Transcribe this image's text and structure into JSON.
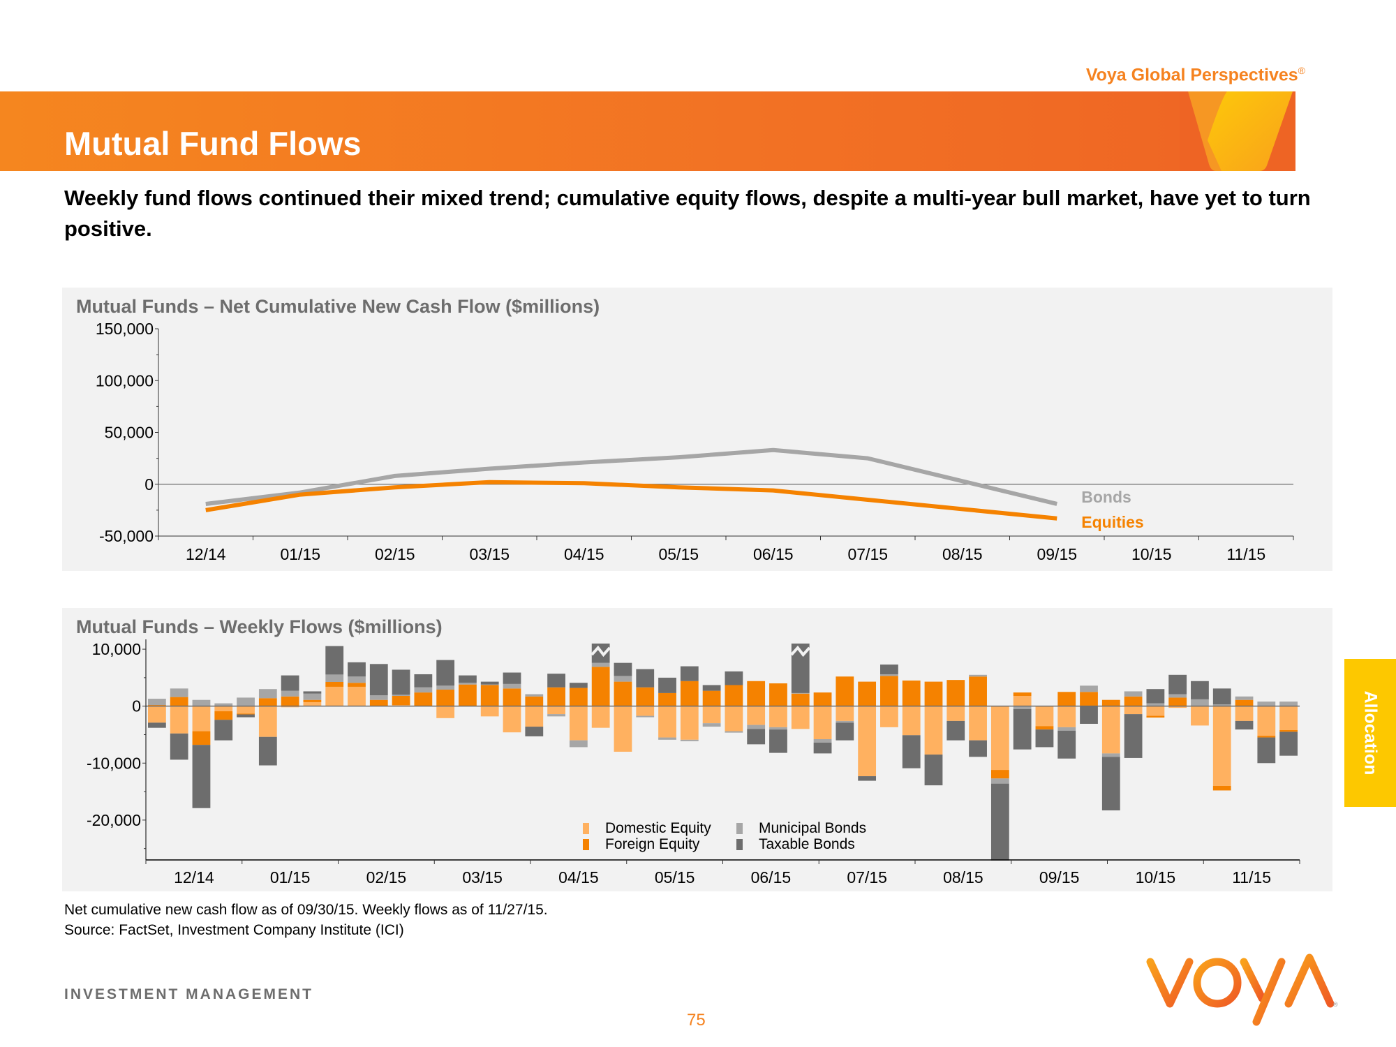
{
  "header": {
    "brand_tag": "Voya Global Perspectives",
    "brand_tag_mark": "®",
    "title": "Mutual Fund Flows",
    "headline": "Weekly fund flows continued their mixed trend; cumulative equity flows, despite a multi-year bull market, have yet to turn positive."
  },
  "side_tab": {
    "label": "Allocation"
  },
  "colors": {
    "brand_orange": "#f5821f",
    "domestic_equity": "#ffb160",
    "foreign_equity": "#f58200",
    "municipal_bonds": "#a6a6a6",
    "taxable_bonds": "#6d6d6d",
    "bonds_line": "#a6a6a6",
    "equities_line": "#f58200",
    "tab_yellow": "#fdc800"
  },
  "chart_data": [
    {
      "type": "line",
      "title": "Mutual Funds – Net Cumulative New Cash Flow ($millions)",
      "xlabel": "",
      "ylabel": "",
      "ylim": [
        -50000,
        150000
      ],
      "yticks": [
        150000,
        100000,
        50000,
        0,
        -50000
      ],
      "ytick_labels": [
        "150,000",
        "100,000",
        "50,000",
        "0",
        "-50,000"
      ],
      "categories": [
        "12/14",
        "01/15",
        "02/15",
        "03/15",
        "04/15",
        "05/15",
        "06/15",
        "07/15",
        "08/15",
        "09/15",
        "10/15",
        "11/15"
      ],
      "series": [
        {
          "name": "Bonds",
          "values": [
            -19000,
            -8000,
            8000,
            15000,
            21000,
            26000,
            33000,
            25000,
            3000,
            -19000,
            null,
            null
          ]
        },
        {
          "name": "Equities",
          "values": [
            -25000,
            -10000,
            -3000,
            2000,
            1000,
            -3000,
            -6000,
            -15000,
            -24000,
            -33000,
            null,
            null
          ]
        }
      ],
      "legend": "right-of-line-end",
      "grid": false
    },
    {
      "type": "bar",
      "stacked": true,
      "title": "Mutual Funds – Weekly Flows ($millions)",
      "xlabel": "",
      "ylabel": "",
      "ylim": [
        -27000,
        10500
      ],
      "yticks": [
        10000,
        0,
        -10000,
        -20000
      ],
      "ytick_labels": [
        "10,000",
        "0",
        "-10,000",
        "-20,000"
      ],
      "xtick_labels": [
        "12/14",
        "01/15",
        "02/15",
        "03/15",
        "04/15",
        "05/15",
        "06/15",
        "07/15",
        "08/15",
        "09/15",
        "10/15",
        "11/15"
      ],
      "legend": "bottom-center",
      "legend_entries": [
        "Domestic Equity",
        "Foreign Equity",
        "Municipal Bonds",
        "Taxable Bonds"
      ],
      "broken_bar_note": "one Taxable Bonds bar (week 30) exceeds the axis and is drawn with a break mark",
      "series": [
        {
          "name": "Domestic Equity",
          "values": [
            -2900,
            -4800,
            -4400,
            -900,
            -1300,
            -5400,
            -200,
            700,
            3400,
            3400,
            0,
            200,
            0,
            -2100,
            0,
            -1800,
            -4600,
            -3600,
            -1400,
            -6000,
            -3800,
            -8000,
            -1700,
            -5500,
            -5900,
            -3000,
            -4400,
            -3300,
            -3700,
            -4000,
            -5800,
            -2600,
            -12300,
            -3700,
            -5100,
            -8500,
            -2600,
            -6000,
            -11200,
            1800,
            -3500,
            -3700,
            0,
            -8300,
            -1400,
            -1700,
            -300,
            -3400,
            -14000,
            -2600,
            -5200,
            -4200
          ]
        },
        {
          "name": "Foreign Equity",
          "values": [
            200,
            1600,
            -2400,
            -1500,
            -150,
            1400,
            1700,
            400,
            850,
            700,
            1100,
            1600,
            2400,
            2900,
            3800,
            3700,
            3100,
            1700,
            3300,
            3200,
            6900,
            4300,
            3300,
            2300,
            4400,
            2700,
            3700,
            4400,
            4000,
            2200,
            2400,
            5200,
            4300,
            5300,
            4500,
            4300,
            4600,
            5200,
            -1500,
            600,
            -600,
            2500,
            2500,
            1100,
            1700,
            -300,
            1500,
            0,
            -800,
            1100,
            -300,
            -300
          ]
        },
        {
          "name": "Municipal Bonds",
          "values": [
            1100,
            1500,
            1100,
            500,
            1500,
            1600,
            1000,
            1100,
            1300,
            1100,
            800,
            200,
            900,
            700,
            300,
            100,
            800,
            400,
            -400,
            -1200,
            700,
            1000,
            -250,
            -400,
            -250,
            -600,
            -250,
            -700,
            -400,
            100,
            -600,
            -300,
            0,
            300,
            0,
            0,
            0,
            300,
            -900,
            -500,
            0,
            -600,
            1100,
            -600,
            900,
            500,
            600,
            1200,
            300,
            600,
            800,
            800
          ]
        },
        {
          "name": "Taxable Bonds",
          "values": [
            -900,
            -4600,
            -11100,
            -3600,
            -500,
            -5000,
            2700,
            400,
            5000,
            2500,
            5500,
            4400,
            2300,
            4500,
            1300,
            500,
            2000,
            -1700,
            2400,
            900,
            3600,
            2300,
            3200,
            2700,
            2600,
            1000,
            2400,
            -2700,
            -4100,
            12000,
            -1900,
            -3100,
            -800,
            1700,
            -5800,
            -5400,
            -3400,
            -2900,
            -13500,
            -7100,
            -3100,
            -4900,
            -3100,
            -9400,
            -7700,
            2500,
            3400,
            3200,
            2800,
            -1500,
            -4500,
            -4200
          ]
        }
      ]
    }
  ],
  "notes": {
    "line1": "Net cumulative new cash flow as of 09/30/15. Weekly flows as of 11/27/15.",
    "line2": "Source: FactSet, Investment Company Institute (ICI)"
  },
  "footer": {
    "division": "INVESTMENT MANAGEMENT",
    "page_number": "75",
    "logo_text": "VOYA",
    "logo_mark": "®"
  }
}
